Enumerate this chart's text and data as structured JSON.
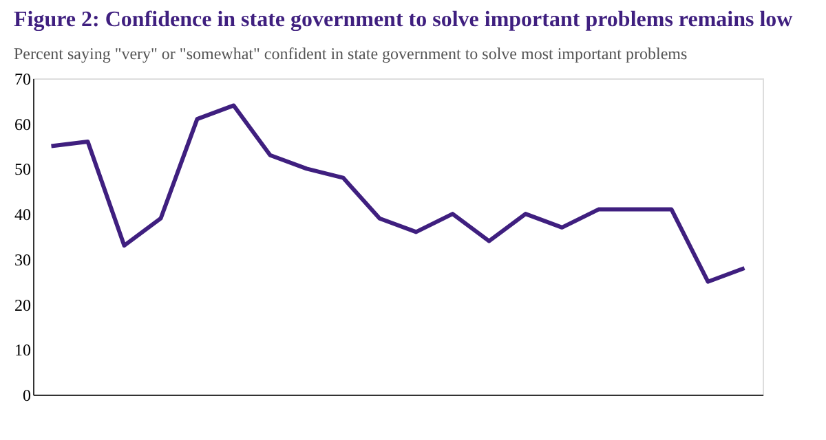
{
  "chart_data": {
    "type": "line",
    "title": "Figure 2: Confidence in state government to solve important problems remains low",
    "subtitle": "Percent  saying \"very\" or \"somewhat\" confident in state government to solve most important problems",
    "categories": [
      null,
      null,
      null,
      null,
      null,
      null,
      null,
      null,
      null,
      null,
      null,
      null,
      null,
      null,
      null,
      null,
      null,
      null,
      null,
      null
    ],
    "series": [
      {
        "color": "#3f1f7f",
        "values": [
          55,
          56,
          33,
          39,
          61,
          64,
          53,
          50,
          48,
          39,
          36,
          40,
          34,
          40,
          37,
          41,
          41,
          41,
          25,
          28
        ]
      }
    ],
    "ylim": [
      0,
      70
    ],
    "yticks": [
      0,
      10,
      20,
      30,
      40,
      50,
      60,
      70
    ],
    "grid": false,
    "tick_labels": "y",
    "marker": "none",
    "line_style": "solid"
  }
}
